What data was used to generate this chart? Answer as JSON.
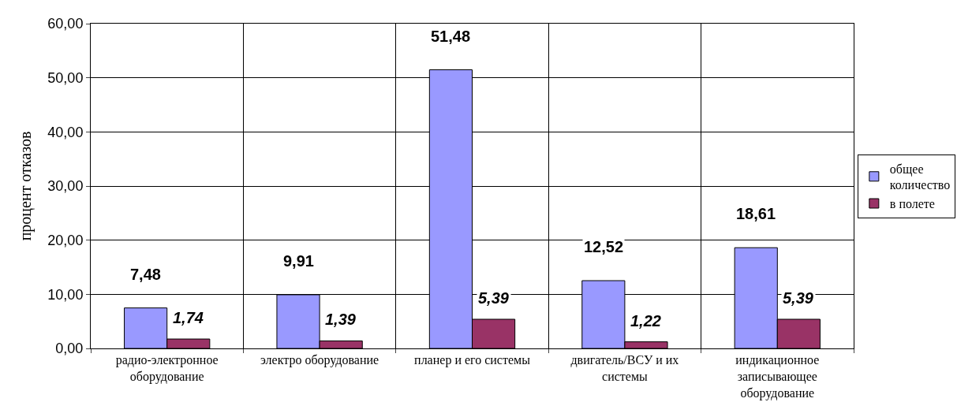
{
  "chart_data": {
    "type": "bar",
    "ylabel": "процент отказов",
    "categories": [
      "радио-электронное оборудование",
      "электро оборудование",
      "планер и его системы",
      "двигатель/ВСУ и их системы",
      "индикационное записывающее оборудование"
    ],
    "series": [
      {
        "name": "общее количество",
        "color": "#9999ff",
        "values": [
          7.48,
          9.91,
          51.48,
          12.52,
          18.61
        ],
        "value_labels": [
          "7,48",
          "9,91",
          "51,48",
          "12,52",
          "18,61"
        ]
      },
      {
        "name": "в полете",
        "color": "#993366",
        "values": [
          1.74,
          1.39,
          5.39,
          1.22,
          5.39
        ],
        "value_labels": [
          "1,74",
          "1,39",
          "5,39",
          "1,22",
          "5,39"
        ]
      }
    ],
    "ylim": [
      0,
      60
    ],
    "yticks": [
      {
        "value": 0,
        "label": "0,00"
      },
      {
        "value": 10,
        "label": "10,00"
      },
      {
        "value": 20,
        "label": "20,00"
      },
      {
        "value": 30,
        "label": "30,00"
      },
      {
        "value": 40,
        "label": "40,00"
      },
      {
        "value": 50,
        "label": "50,00"
      },
      {
        "value": 60,
        "label": "60,00"
      }
    ],
    "grid": true,
    "legend": "right"
  }
}
